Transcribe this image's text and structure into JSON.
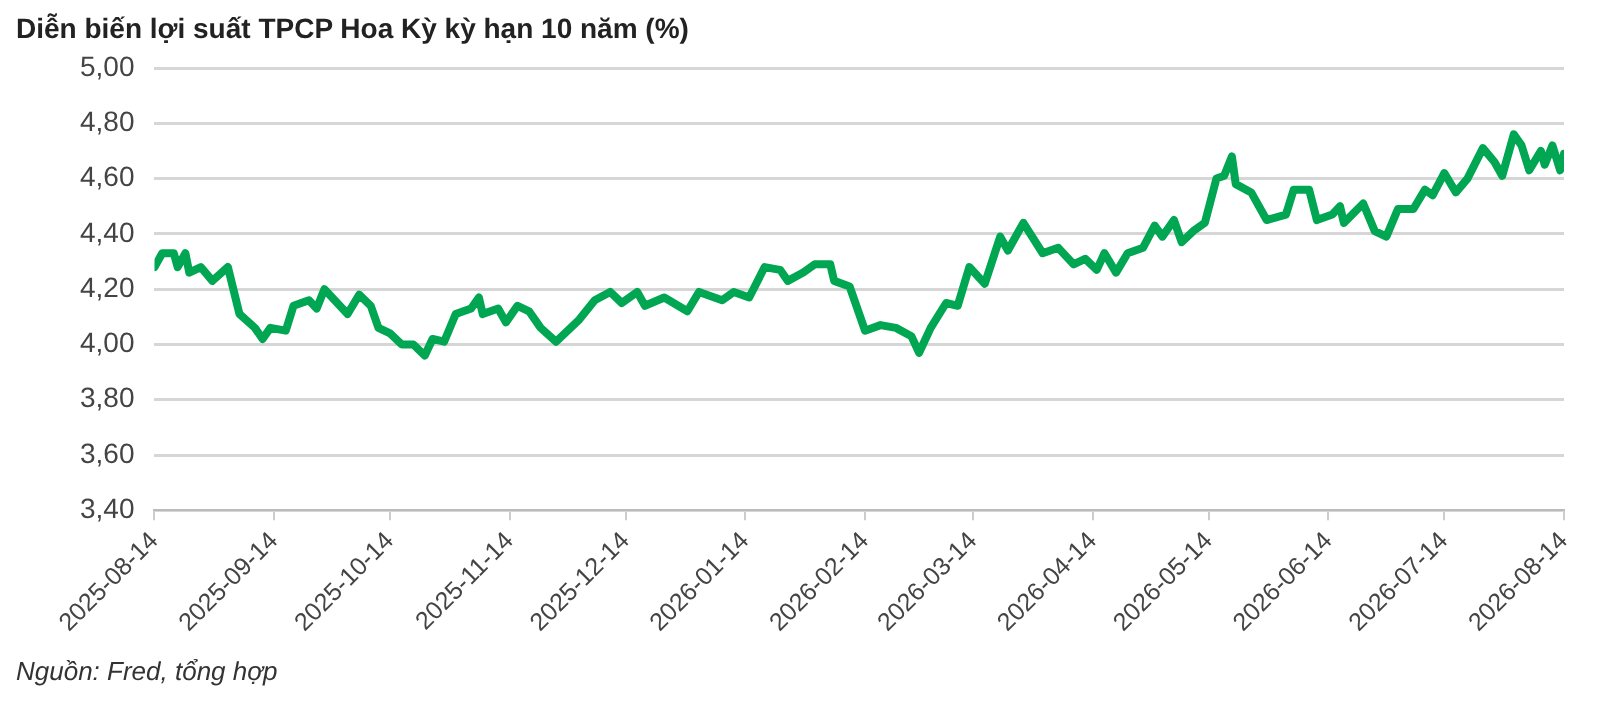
{
  "chart_data": {
    "type": "line",
    "title": "Diễn biến lợi suất TPCP Hoa Kỳ kỳ hạn 10 năm (%)",
    "annotations": [
      "Nguồn: Fred, tổng hợp"
    ],
    "x": [
      "2025-08-14",
      "2025-08-16",
      "2025-08-19",
      "2025-08-20",
      "2025-08-22",
      "2025-08-23",
      "2025-08-26",
      "2025-08-29",
      "2025-09-02",
      "2025-09-05",
      "2025-09-09",
      "2025-09-11",
      "2025-09-13",
      "2025-09-17",
      "2025-09-19",
      "2025-09-23",
      "2025-09-25",
      "2025-09-27",
      "2025-09-29",
      "2025-10-03",
      "2025-10-06",
      "2025-10-09",
      "2025-10-11",
      "2025-10-14",
      "2025-10-17",
      "2025-10-20",
      "2025-10-23",
      "2025-10-25",
      "2025-10-28",
      "2025-10-31",
      "2025-11-04",
      "2025-11-06",
      "2025-11-07",
      "2025-11-11",
      "2025-11-13",
      "2025-11-16",
      "2025-11-19",
      "2025-11-22",
      "2025-11-26",
      "2025-12-02",
      "2025-12-06",
      "2025-12-10",
      "2025-12-13",
      "2025-12-17",
      "2025-12-19",
      "2025-12-24",
      "2025-12-30",
      "2026-01-02",
      "2026-01-08",
      "2026-01-11",
      "2026-01-15",
      "2026-01-19",
      "2026-01-23",
      "2026-01-25",
      "2026-01-29",
      "2026-02-01",
      "2026-02-05",
      "2026-02-06",
      "2026-02-10",
      "2026-02-14",
      "2026-02-18",
      "2026-02-22",
      "2026-02-26",
      "2026-02-28",
      "2026-03-03",
      "2026-03-07",
      "2026-03-10",
      "2026-03-13",
      "2026-03-17",
      "2026-03-21",
      "2026-03-23",
      "2026-03-27",
      "2026-04-01",
      "2026-04-05",
      "2026-04-09",
      "2026-04-12",
      "2026-04-15",
      "2026-04-17",
      "2026-04-20",
      "2026-04-23",
      "2026-04-27",
      "2026-04-30",
      "2026-05-02",
      "2026-05-05",
      "2026-05-07",
      "2026-05-10",
      "2026-05-13",
      "2026-05-16",
      "2026-05-18",
      "2026-05-20",
      "2026-05-21",
      "2026-05-25",
      "2026-05-29",
      "2026-06-03",
      "2026-06-05",
      "2026-06-09",
      "2026-06-11",
      "2026-06-15",
      "2026-06-17",
      "2026-06-18",
      "2026-06-23",
      "2026-06-26",
      "2026-06-29",
      "2026-07-02",
      "2026-07-06",
      "2026-07-09",
      "2026-07-11",
      "2026-07-14",
      "2026-07-17",
      "2026-07-20",
      "2026-07-24",
      "2026-07-27",
      "2026-07-29",
      "2026-08-01",
      "2026-08-03",
      "2026-08-05",
      "2026-08-08",
      "2026-08-09",
      "2026-08-11",
      "2026-08-13",
      "2026-08-14"
    ],
    "series": [
      {
        "color": "#00a651",
        "values": [
          4.28,
          4.33,
          4.33,
          4.28,
          4.33,
          4.26,
          4.28,
          4.23,
          4.28,
          4.11,
          4.06,
          4.02,
          4.06,
          4.05,
          4.14,
          4.16,
          4.13,
          4.2,
          4.17,
          4.11,
          4.18,
          4.14,
          4.06,
          4.04,
          4.0,
          4.0,
          3.96,
          4.02,
          4.01,
          4.11,
          4.13,
          4.17,
          4.11,
          4.13,
          4.08,
          4.14,
          4.12,
          4.06,
          4.01,
          4.09,
          4.16,
          4.19,
          4.15,
          4.19,
          4.14,
          4.17,
          4.12,
          4.19,
          4.16,
          4.19,
          4.17,
          4.28,
          4.27,
          4.23,
          4.26,
          4.29,
          4.29,
          4.23,
          4.21,
          4.05,
          4.07,
          4.06,
          4.03,
          3.97,
          4.06,
          4.15,
          4.14,
          4.28,
          4.22,
          4.39,
          4.34,
          4.44,
          4.33,
          4.35,
          4.29,
          4.31,
          4.27,
          4.33,
          4.26,
          4.33,
          4.35,
          4.43,
          4.39,
          4.45,
          4.37,
          4.41,
          4.44,
          4.6,
          4.61,
          4.68,
          4.58,
          4.55,
          4.45,
          4.47,
          4.56,
          4.56,
          4.45,
          4.47,
          4.5,
          4.44,
          4.51,
          4.41,
          4.39,
          4.49,
          4.49,
          4.56,
          4.54,
          4.62,
          4.55,
          4.6,
          4.71,
          4.66,
          4.61,
          4.76,
          4.72,
          4.63,
          4.7,
          4.65,
          4.72,
          4.63,
          4.69
        ]
      }
    ],
    "xlim": [
      "2025-08-14",
      "2026-08-14"
    ],
    "xticks": [
      "2025-08-14",
      "2025-09-14",
      "2025-10-14",
      "2025-11-14",
      "2025-12-14",
      "2026-01-14",
      "2026-02-14",
      "2026-03-14",
      "2026-04-14",
      "2026-05-14",
      "2026-06-14",
      "2026-07-14",
      "2026-08-14"
    ],
    "ylim": [
      3.4,
      5.0
    ],
    "yticks": [
      {
        "value": 3.4,
        "label": "3,40"
      },
      {
        "value": 3.6,
        "label": "3,60"
      },
      {
        "value": 3.8,
        "label": "3,80"
      },
      {
        "value": 4.0,
        "label": "4,00"
      },
      {
        "value": 4.2,
        "label": "4,20"
      },
      {
        "value": 4.4,
        "label": "4,40"
      },
      {
        "value": 4.6,
        "label": "4,60"
      },
      {
        "value": 4.8,
        "label": "4,80"
      },
      {
        "value": 5.0,
        "label": "5,00"
      }
    ],
    "grid": "y",
    "legend": false,
    "marker": "none",
    "line_style": "solid"
  }
}
